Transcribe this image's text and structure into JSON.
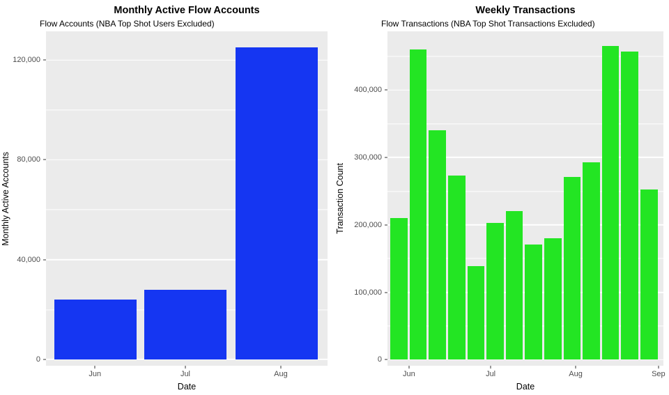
{
  "theme": {
    "figure_bg": "#FFFFFF",
    "panel_bg": "#EBEBEB",
    "grid_color": "#FFFFFF",
    "axis_text_color": "#4D4D4D",
    "title_color": "#000000"
  },
  "chart_data": [
    {
      "type": "bar",
      "title": "Monthly Active Flow Accounts",
      "subtitle": "Flow Accounts (NBA Top Shot Users Excluded)",
      "xlabel": "Date",
      "ylabel": "Monthly Active Accounts",
      "categories": [
        "Jun",
        "Jul",
        "Aug"
      ],
      "values": [
        24000,
        28000,
        125000
      ],
      "bar_color": "#1536F2",
      "ylim": [
        -2500,
        131500
      ],
      "y_major_ticks": [
        0,
        40000,
        80000,
        120000
      ],
      "y_major_labels": [
        "0",
        "40,000",
        "80,000",
        "120,000"
      ],
      "y_minor_ticks": [
        20000,
        60000,
        100000
      ],
      "x_ticks": [
        {
          "label": "Jun",
          "pos_pct": 17.4
        },
        {
          "label": "Jul",
          "pos_pct": 49.5
        },
        {
          "label": "Aug",
          "pos_pct": 83.4
        }
      ],
      "bar_centers_pct": [
        17.6,
        49.5,
        81.9
      ],
      "bar_width_pct": 29.2,
      "grid": true,
      "legend": "none"
    },
    {
      "type": "bar",
      "title": "Weekly Transactions",
      "subtitle": "Flow Transactions (NBA Top Shot Transactions Excluded)",
      "xlabel": "Date",
      "ylabel": "Transaction Count",
      "x_unit": "week",
      "values": [
        210000,
        460000,
        340000,
        273000,
        139000,
        203000,
        220000,
        171000,
        180000,
        271000,
        293000,
        465000,
        457000,
        252000
      ],
      "bar_color": "#23E523",
      "ylim": [
        -9000,
        487000
      ],
      "y_major_ticks": [
        0,
        100000,
        200000,
        300000,
        400000
      ],
      "y_major_labels": [
        "0",
        "100,000",
        "200,000",
        "300,000",
        "400,000"
      ],
      "y_minor_ticks": [
        50000,
        150000,
        250000,
        350000,
        450000
      ],
      "x_ticks": [
        {
          "label": "Jun",
          "pos_pct": 7.8
        },
        {
          "label": "Jul",
          "pos_pct": 37.4
        },
        {
          "label": "Aug",
          "pos_pct": 68.2
        },
        {
          "label": "Sep",
          "pos_pct": 98.2
        }
      ],
      "bar_centers_pct": [
        4.17,
        11.14,
        18.11,
        25.08,
        32.05,
        39.02,
        45.99,
        52.96,
        59.93,
        66.9,
        73.87,
        80.84,
        87.81,
        94.78
      ],
      "bar_width_pct": 6.2,
      "grid": true,
      "legend": "none"
    }
  ]
}
